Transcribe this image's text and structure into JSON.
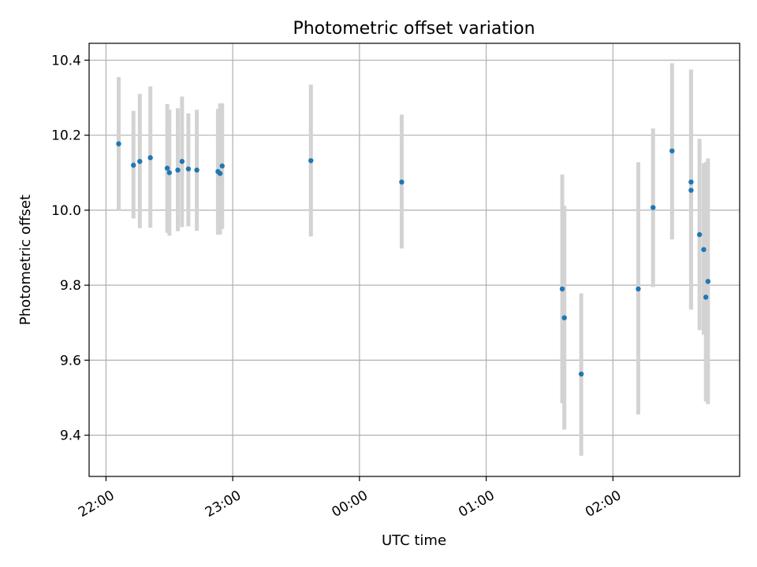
{
  "chart_data": {
    "type": "scatter",
    "title": "Photometric offset variation",
    "xlabel": "UTC time",
    "ylabel": "Photometric offset",
    "xlim": [
      "21:52",
      "03:00"
    ],
    "ylim": [
      9.29,
      10.445
    ],
    "grid": true,
    "x_ticks": [
      "22:00",
      "23:00",
      "00:00",
      "01:00",
      "02:00"
    ],
    "y_ticks": [
      9.4,
      9.6,
      9.8,
      10.0,
      10.2,
      10.4
    ],
    "y_tick_labels": [
      "9.4",
      "9.6",
      "9.8",
      "10.0",
      "10.2",
      "10.4"
    ],
    "colors": {
      "point": "#1f77b4",
      "errorbar": "#d3d3d3"
    },
    "series": [
      {
        "points": [
          {
            "x": "22:06",
            "y": 10.177,
            "lo": 10.0,
            "hi": 10.355
          },
          {
            "x": "22:13",
            "y": 10.12,
            "lo": 9.978,
            "hi": 10.265
          },
          {
            "x": "22:16",
            "y": 10.13,
            "lo": 9.952,
            "hi": 10.31
          },
          {
            "x": "22:21",
            "y": 10.14,
            "lo": 9.953,
            "hi": 10.33
          },
          {
            "x": "22:29",
            "y": 10.112,
            "lo": 9.94,
            "hi": 10.283
          },
          {
            "x": "22:30",
            "y": 10.1,
            "lo": 9.932,
            "hi": 10.268
          },
          {
            "x": "22:34",
            "y": 10.107,
            "lo": 9.944,
            "hi": 10.272
          },
          {
            "x": "22:36",
            "y": 10.13,
            "lo": 9.955,
            "hi": 10.303
          },
          {
            "x": "22:39",
            "y": 10.11,
            "lo": 9.957,
            "hi": 10.258
          },
          {
            "x": "22:43",
            "y": 10.107,
            "lo": 9.945,
            "hi": 10.268
          },
          {
            "x": "22:53",
            "y": 10.103,
            "lo": 9.935,
            "hi": 10.27
          },
          {
            "x": "22:54",
            "y": 10.098,
            "lo": 9.935,
            "hi": 10.285
          },
          {
            "x": "22:55",
            "y": 10.118,
            "lo": 9.95,
            "hi": 10.285
          },
          {
            "x": "23:37",
            "y": 10.132,
            "lo": 9.93,
            "hi": 10.335
          },
          {
            "x": "00:20",
            "y": 10.075,
            "lo": 9.898,
            "hi": 10.255
          },
          {
            "x": "01:36",
            "y": 9.79,
            "lo": 9.485,
            "hi": 10.095
          },
          {
            "x": "01:37",
            "y": 9.713,
            "lo": 9.415,
            "hi": 10.012
          },
          {
            "x": "01:45",
            "y": 9.563,
            "lo": 9.345,
            "hi": 9.778
          },
          {
            "x": "02:12",
            "y": 9.79,
            "lo": 9.455,
            "hi": 10.128
          },
          {
            "x": "02:19",
            "y": 10.007,
            "lo": 9.795,
            "hi": 10.218
          },
          {
            "x": "02:28",
            "y": 10.158,
            "lo": 9.922,
            "hi": 10.392
          },
          {
            "x": "02:37",
            "y": 10.075,
            "lo": 9.735,
            "hi": 10.375
          },
          {
            "x": "02:37",
            "y": 10.053,
            "lo": 9.735,
            "hi": 10.375
          },
          {
            "x": "02:41",
            "y": 9.935,
            "lo": 9.68,
            "hi": 10.19
          },
          {
            "x": "02:43",
            "y": 9.895,
            "lo": 9.668,
            "hi": 10.125
          },
          {
            "x": "02:44",
            "y": 9.768,
            "lo": 9.49,
            "hi": 10.128
          },
          {
            "x": "02:45",
            "y": 9.81,
            "lo": 9.483,
            "hi": 10.138
          }
        ]
      }
    ]
  }
}
